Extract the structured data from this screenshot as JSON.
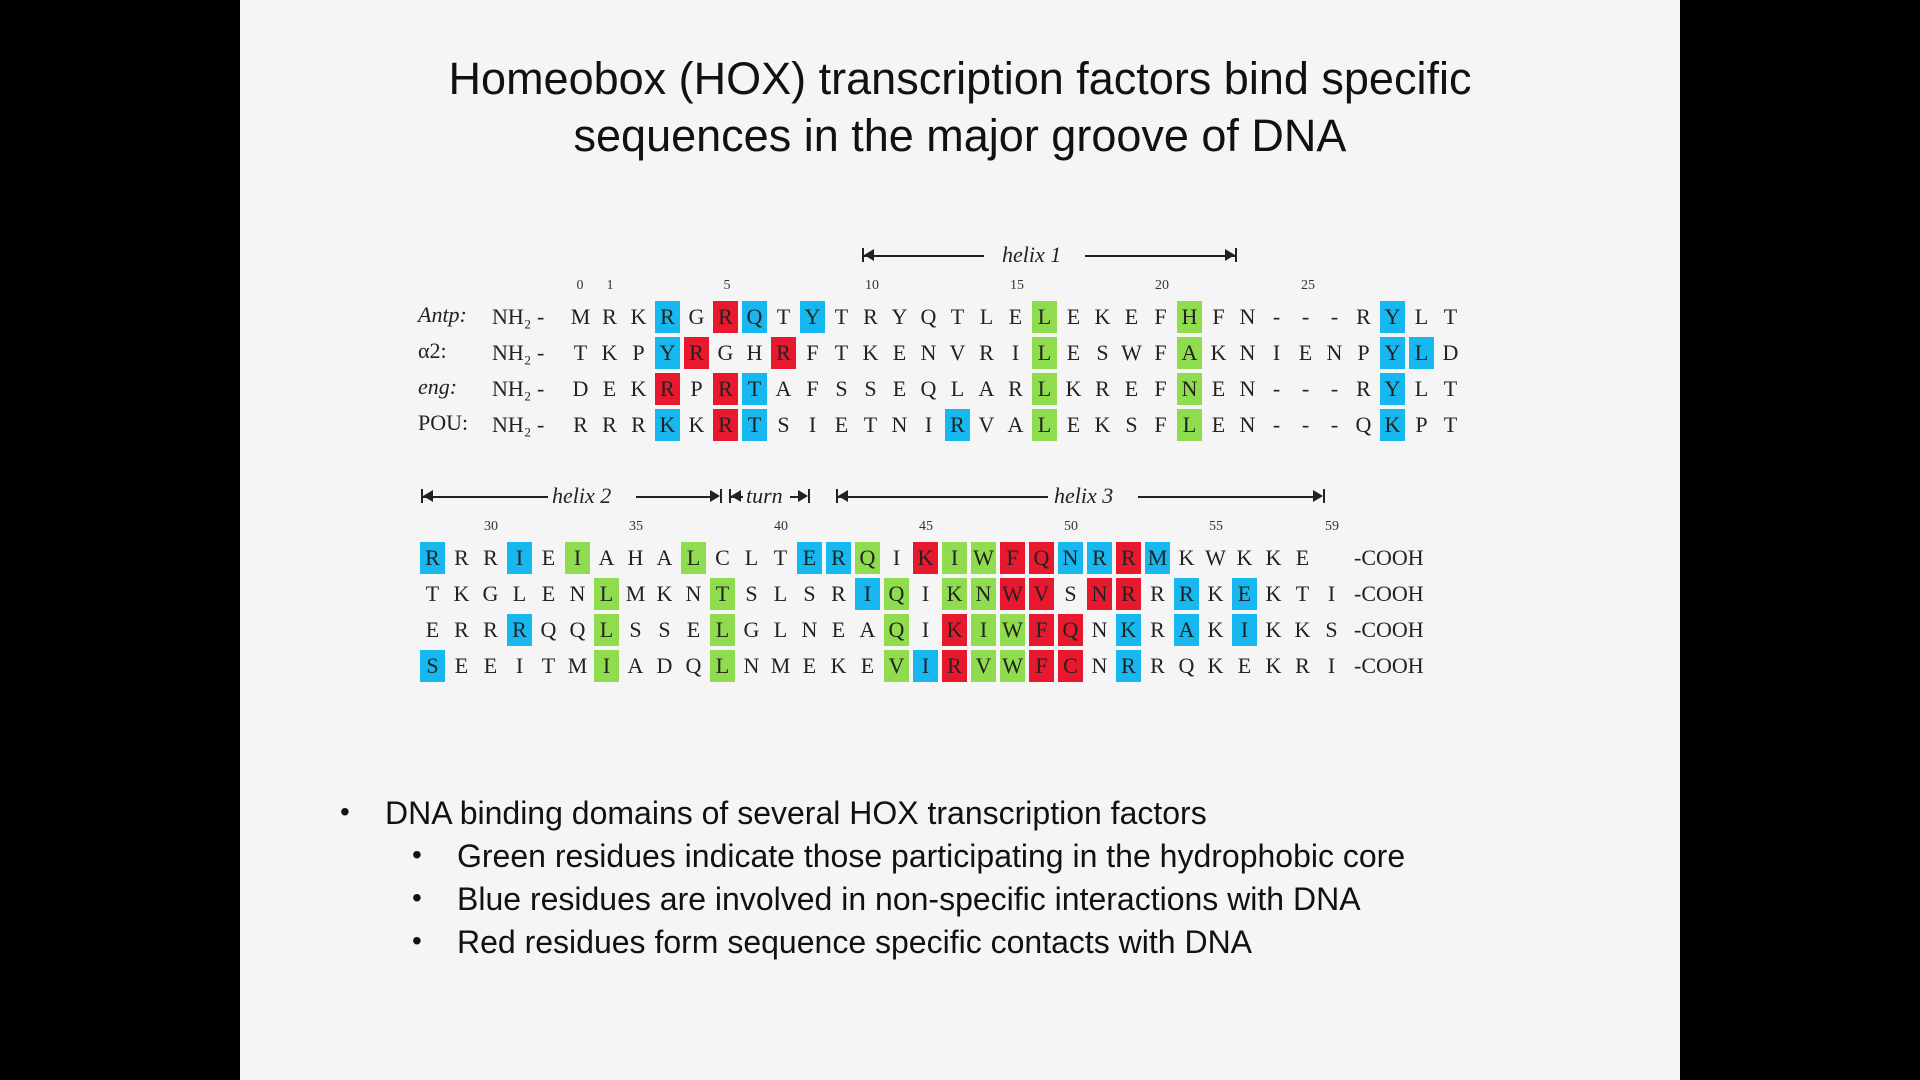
{
  "slide": {
    "title_line1": "Homeobox (HOX) transcription factors bind specific",
    "title_line2": "sequences in the major groove of DNA"
  },
  "figure": {
    "helix_labels": {
      "helix1": "helix 1",
      "helix2": "helix 2",
      "turn": "turn",
      "helix3": "helix 3"
    },
    "position_numbers_top": [
      "0",
      "1",
      "5",
      "10",
      "15",
      "20",
      "25"
    ],
    "position_numbers_bottom": [
      "30",
      "35",
      "40",
      "45",
      "50",
      "55",
      "59"
    ],
    "row_labels": [
      "Antp:",
      "α2:",
      "eng:",
      "POU:"
    ],
    "nh2_prefix": "NH₂ -",
    "cooh_suffix": "-COOH",
    "top_rows": [
      "MRKRGRQTYTRYQTLELEKEFHFN---RYLT",
      "TKPYRGHRFTKENVRILESWFAKNIENPYLD",
      "DEKRPRTAFSSEQLARLKREFNEN---RYLT",
      "RRRKKRTSIETNIRVALEKSFLEN---QKPT"
    ],
    "top_colors": [
      "...b.rb.b.......g....g......b..",
      "...br..r........g....g......bb.",
      "...r.rb.........g....g......b..",
      "...b.rb......b..g....g......b.."
    ],
    "bottom_rows": [
      "RRRIEIAHALCLTERQIKIWFQNRRMKWKKE",
      "TKGLENLMKNTSLSRIQIKNWVSNRRRKEKTI",
      "ERRRQQLSSELGLNEAQIKIWFQNKRAKIKKS",
      "SEEITMIADQLNMEKEVIRVWFCNRRQKEKRI"
    ],
    "bottom_colors": [
      "b..b.g...g...bbg.rggrrbbrb.....",
      "......g...g....bg.ggrr.rr.b.b...",
      "...b..g...g.....g.rggrr.b.b.b...",
      "b.....g...g.....gbrggrr.b......."
    ]
  },
  "bullets": {
    "main": "DNA binding domains of several HOX transcription factors",
    "sub": [
      "Green residues indicate those participating in the hydrophobic core",
      "Blue residues are involved in non-specific interactions with DNA",
      "Red residues form sequence specific contacts with DNA"
    ],
    "marker": "•"
  },
  "colors": {
    "green": "#8fdc4e",
    "blue": "#17b7ef",
    "red": "#e8192f"
  }
}
